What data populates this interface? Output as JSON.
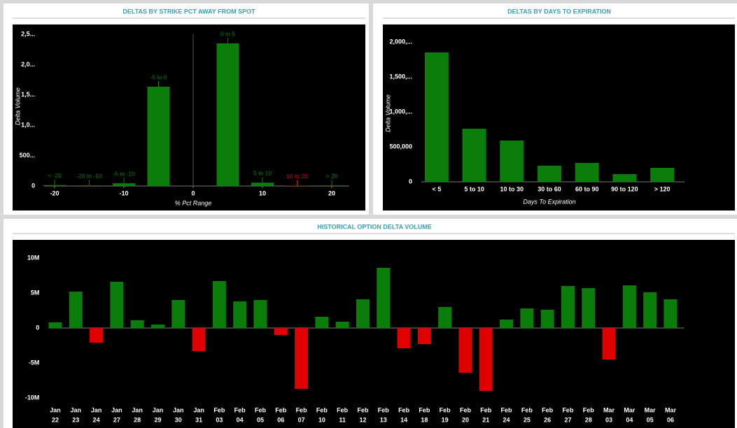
{
  "chart_data": [
    {
      "type": "bar",
      "title": "DELTAS BY STRIKE PCT AWAY FROM SPOT",
      "x": [
        -20,
        -15,
        -10,
        -5,
        5,
        10,
        15,
        20
      ],
      "categories": [
        "< -20",
        "-20 to -10",
        "-5 to -10",
        "-5 to 0",
        "0 to 5",
        "5 to 10",
        "10 to 20",
        "> 20"
      ],
      "values": [
        15,
        10,
        45,
        1636,
        2350,
        55,
        5,
        10
      ],
      "colors": [
        "#0a7d0a",
        "#0a7d0a",
        "#0a7d0a",
        "#0a7d0a",
        "#0a7d0a",
        "#0a7d0a",
        "#e00000",
        "#0a7d0a"
      ],
      "xlim": [
        -22,
        22
      ],
      "xticks": [
        -20,
        -10,
        0,
        10,
        20
      ],
      "ylim": [
        0,
        2620
      ],
      "yticks": [
        0,
        {
          "value": 500,
          "label": "500..."
        },
        {
          "value": 1000,
          "label": "1,0..."
        },
        {
          "value": 1500,
          "label": "1,5..."
        },
        {
          "value": 2000,
          "label": "2,0..."
        },
        {
          "value": 2500,
          "label": "2,5..."
        }
      ],
      "xlabel": "% Pct Range",
      "ylabel": "Delta Volume"
    },
    {
      "type": "bar",
      "title": "DELTAS BY DAYS TO EXPIRATION",
      "categories": [
        "< 5",
        "5 to 10",
        "10 to 30",
        "30 to 60",
        "60 to 90",
        "90 to 120",
        "> 120"
      ],
      "values": [
        1850000,
        760000,
        590000,
        230000,
        270000,
        110000,
        200000
      ],
      "color": "#0a7d0a",
      "ylim": [
        0,
        2200000
      ],
      "yticks": [
        0,
        {
          "value": 500000,
          "label": "500,000"
        },
        {
          "value": 1000000,
          "label": "1,000,..."
        },
        {
          "value": 1500000,
          "label": "1,500,..."
        },
        {
          "value": 2000000,
          "label": "2,000,..."
        }
      ],
      "xlabel": "Days To Expiration",
      "ylabel": "Delta Volume"
    },
    {
      "type": "bar",
      "title": "HISTORICAL OPTION DELTA VOLUME",
      "categories": [
        [
          "Jan",
          "22"
        ],
        [
          "Jan",
          "23"
        ],
        [
          "Jan",
          "24"
        ],
        [
          "Jan",
          "27"
        ],
        [
          "Jan",
          "28"
        ],
        [
          "Jan",
          "29"
        ],
        [
          "Jan",
          "30"
        ],
        [
          "Jan",
          "31"
        ],
        [
          "Feb",
          "03"
        ],
        [
          "Feb",
          "04"
        ],
        [
          "Feb",
          "05"
        ],
        [
          "Feb",
          "06"
        ],
        [
          "Feb",
          "07"
        ],
        [
          "Feb",
          "10"
        ],
        [
          "Feb",
          "11"
        ],
        [
          "Feb",
          "12"
        ],
        [
          "Feb",
          "13"
        ],
        [
          "Feb",
          "14"
        ],
        [
          "Feb",
          "18"
        ],
        [
          "Feb",
          "19"
        ],
        [
          "Feb",
          "20"
        ],
        [
          "Feb",
          "21"
        ],
        [
          "Feb",
          "24"
        ],
        [
          "Feb",
          "25"
        ],
        [
          "Feb",
          "26"
        ],
        [
          "Feb",
          "27"
        ],
        [
          "Feb",
          "28"
        ],
        [
          "Mar",
          "03"
        ],
        [
          "Mar",
          "04"
        ],
        [
          "Mar",
          "05"
        ],
        [
          "Mar",
          "06"
        ]
      ],
      "values": [
        800000,
        5200000,
        -2100000,
        6600000,
        1100000,
        500000,
        4000000,
        -3300000,
        6700000,
        3800000,
        4000000,
        -1000000,
        -8700000,
        1600000,
        900000,
        4100000,
        8600000,
        -2900000,
        -2300000,
        3000000,
        -6400000,
        -9000000,
        1200000,
        2800000,
        2600000,
        6000000,
        5700000,
        -4500000,
        6100000,
        5100000,
        4100000
      ],
      "positive_color": "#0a7d0a",
      "negative_color": "#e00000",
      "ylim": [
        -11000000,
        12000000
      ],
      "yticks": [
        {
          "value": 10000000,
          "label": "10M"
        },
        {
          "value": 5000000,
          "label": "5M"
        },
        0,
        {
          "value": -5000000,
          "label": "-5M"
        },
        {
          "value": -10000000,
          "label": "-10M"
        }
      ]
    }
  ]
}
